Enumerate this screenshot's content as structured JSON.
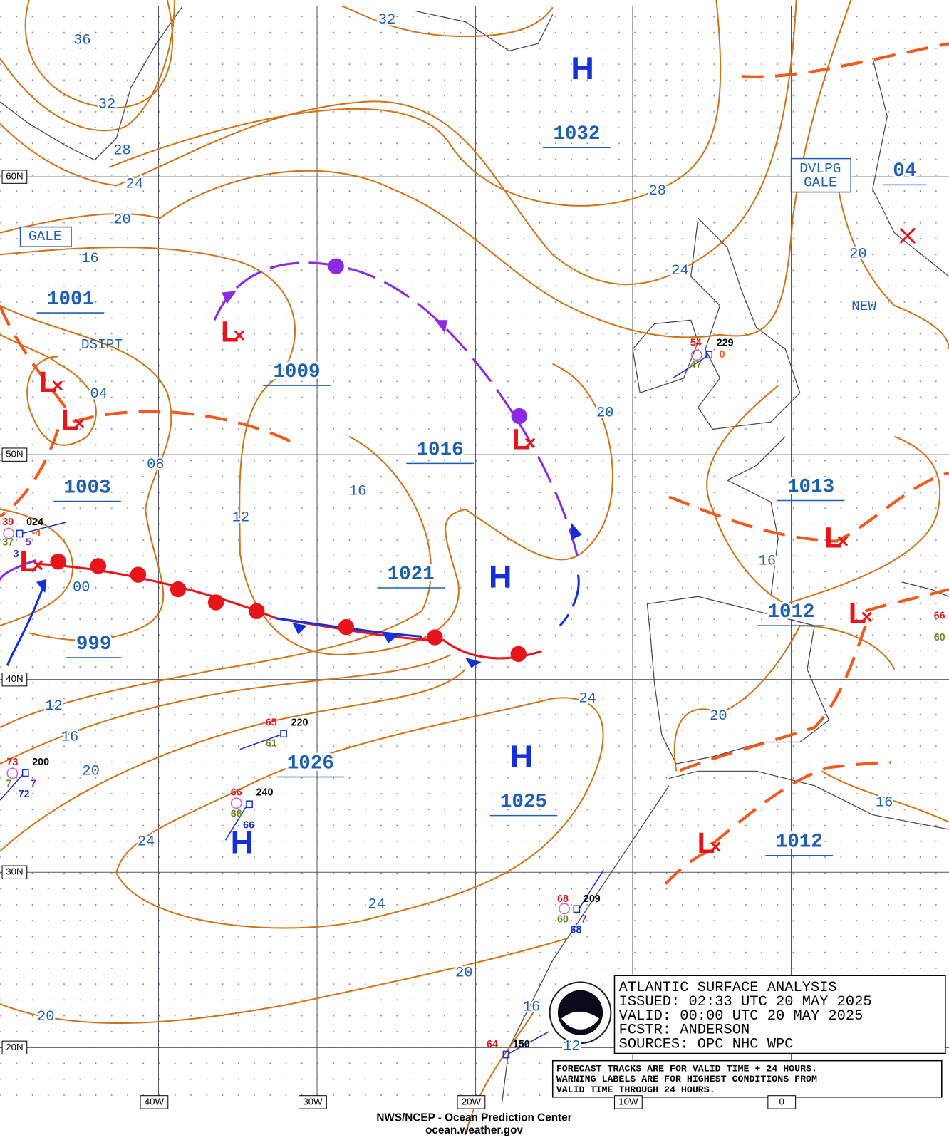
{
  "header": {
    "title_lines": [
      "ATLANTIC SURFACE ANALYSIS",
      "ISSUED:  02:33 UTC 20 MAY 2025",
      "VALID:  00:00 UTC 20 MAY 2025",
      "FCSTR:  ANDERSON",
      "SOURCES:  OPC NHC WPC"
    ],
    "notice_lines": [
      "FORECAST TRACKS ARE FOR VALID TIME + 24 HOURS.",
      "WARNING LABELS ARE FOR HIGHEST CONDITIONS FROM",
      "VALID TIME THROUGH 24 HOURS."
    ]
  },
  "footer": [
    "NWS/NCEP - Ocean Prediction Center",
    "ocean.weather.gov"
  ],
  "lat_labels": [
    "60N",
    "50N",
    "40N",
    "30N",
    "20N"
  ],
  "lon_labels": [
    "40W",
    "30W",
    "20W",
    "10W",
    "0"
  ],
  "isobar_labels": [
    "36",
    "32",
    "32",
    "28",
    "24",
    "20",
    "16",
    "28",
    "24",
    "20",
    "04",
    "08",
    "12",
    "16",
    "20",
    "00",
    "16",
    "20",
    "24",
    "12",
    "16",
    "20",
    "24",
    "24",
    "20",
    "20",
    "16",
    "16",
    "12"
  ],
  "pressure_labels": [
    "1032",
    "1001",
    "1009",
    "1016",
    "1003",
    "1021",
    "1013",
    "1012",
    "999",
    "1026",
    "1025",
    "1012",
    "04"
  ],
  "highs": [
    "H",
    "H",
    "H",
    "H"
  ],
  "lows": [
    "L",
    "L",
    "L",
    "L",
    "L",
    "L",
    "L",
    "L"
  ],
  "warnings": [
    "GALE",
    "DVLPG",
    "GALE",
    "DSIPT",
    "NEW"
  ],
  "stations": [
    [
      "54",
      "229",
      "47",
      "0"
    ],
    [
      "39",
      "024",
      "37",
      "5",
      "3",
      "-4"
    ],
    [
      "65",
      "220",
      "61"
    ],
    [
      "73",
      "200",
      "7",
      "7",
      "72"
    ],
    [
      "66",
      "240",
      "66",
      "66"
    ],
    [
      "68",
      "209",
      "60",
      "7",
      "68"
    ],
    [
      "64",
      "150"
    ],
    [
      "66",
      "60"
    ]
  ]
}
